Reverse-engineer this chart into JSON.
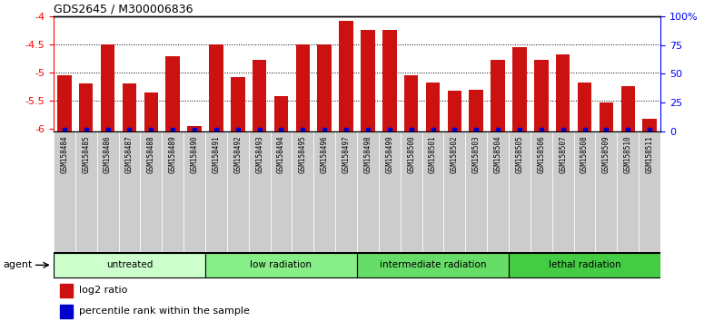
{
  "title": "GDS2645 / M300006836",
  "samples": [
    "GSM158484",
    "GSM158485",
    "GSM158486",
    "GSM158487",
    "GSM158488",
    "GSM158489",
    "GSM158490",
    "GSM158491",
    "GSM158492",
    "GSM158493",
    "GSM158494",
    "GSM158495",
    "GSM158496",
    "GSM158497",
    "GSM158498",
    "GSM158499",
    "GSM158500",
    "GSM158501",
    "GSM158502",
    "GSM158503",
    "GSM158504",
    "GSM158505",
    "GSM158506",
    "GSM158507",
    "GSM158508",
    "GSM158509",
    "GSM158510",
    "GSM158511"
  ],
  "values": [
    -5.05,
    -5.2,
    -4.5,
    -5.2,
    -5.35,
    -4.72,
    -5.95,
    -4.5,
    -5.08,
    -4.78,
    -5.42,
    -4.5,
    -4.5,
    -4.08,
    -4.25,
    -4.25,
    -5.05,
    -5.18,
    -5.32,
    -5.3,
    -4.78,
    -4.55,
    -4.78,
    -4.68,
    -5.18,
    -5.53,
    -5.25,
    -5.82
  ],
  "groups": [
    {
      "label": "untreated",
      "start": 0,
      "end": 7,
      "color": "#ccffcc"
    },
    {
      "label": "low radiation",
      "start": 7,
      "end": 14,
      "color": "#88ee88"
    },
    {
      "label": "intermediate radiation",
      "start": 14,
      "end": 21,
      "color": "#66dd66"
    },
    {
      "label": "lethal radiation",
      "start": 21,
      "end": 28,
      "color": "#44cc44"
    }
  ],
  "bar_color": "#cc1111",
  "percentile_color": "#0000cc",
  "ylim_left": [
    -6.05,
    -4.0
  ],
  "ylim_right": [
    0,
    100
  ],
  "yticks_left": [
    -6,
    -5.5,
    -5,
    -4.5,
    -4
  ],
  "ytick_labels_left": [
    "-6",
    "-5.5",
    "-5",
    "-4.5",
    "-4"
  ],
  "yticks_right": [
    0,
    25,
    50,
    75,
    100
  ],
  "ytick_labels_right": [
    "0",
    "25",
    "50",
    "75",
    "100%"
  ],
  "grid_values": [
    -5.5,
    -5.0,
    -4.5
  ],
  "agent_label": "agent",
  "legend_items": [
    {
      "label": "log2 ratio",
      "color": "#cc1111"
    },
    {
      "label": "percentile rank within the sample",
      "color": "#0000cc"
    }
  ],
  "bg_color": "#ffffff",
  "tick_area_color": "#cccccc"
}
